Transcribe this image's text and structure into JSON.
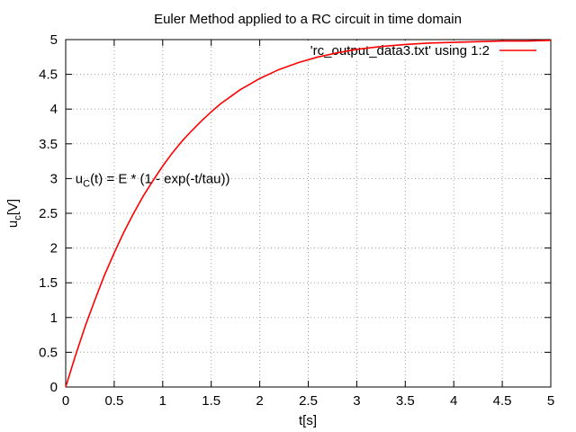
{
  "chart_data": {
    "type": "line",
    "title": "Euler Method applied to a RC circuit in time domain",
    "xlabel": "t[s]",
    "ylabel": {
      "main": "u",
      "sub": "c",
      "suffix": "[V]"
    },
    "xlim": [
      0,
      5
    ],
    "ylim": [
      0,
      5
    ],
    "grid": true,
    "legend_position": "top-right",
    "x_ticks": [
      "0",
      "0.5",
      "1",
      "1.5",
      "2",
      "2.5",
      "3",
      "3.5",
      "4",
      "4.5",
      "5"
    ],
    "y_ticks": [
      "0",
      "0.5",
      "1",
      "1.5",
      "2",
      "2.5",
      "3",
      "3.5",
      "4",
      "4.5",
      "5"
    ],
    "annotation": {
      "prefix": "u",
      "sub": "C",
      "suffix": "(t) = E * (1 - exp(-t/tau))",
      "x": 0.1,
      "y": 3.0
    },
    "series": [
      {
        "name": "'rc_output_data3.txt' using 1:2",
        "color": "#ff0000",
        "x": [
          0,
          0.1,
          0.2,
          0.3,
          0.4,
          0.5,
          0.6,
          0.7,
          0.8,
          0.9,
          1.0,
          1.1,
          1.2,
          1.3,
          1.4,
          1.5,
          1.6,
          1.7,
          1.8,
          1.9,
          2.0,
          2.2,
          2.4,
          2.6,
          2.8,
          3.0,
          3.25,
          3.5,
          3.75,
          4.0,
          4.25,
          4.5,
          4.75,
          5.0
        ],
        "y": [
          0,
          0.45,
          0.87,
          1.25,
          1.61,
          1.93,
          2.23,
          2.5,
          2.75,
          2.97,
          3.18,
          3.37,
          3.54,
          3.69,
          3.83,
          3.96,
          4.08,
          4.18,
          4.28,
          4.36,
          4.44,
          4.57,
          4.67,
          4.75,
          4.81,
          4.86,
          4.9,
          4.93,
          4.95,
          4.96,
          4.97,
          4.98,
          4.98,
          4.99
        ]
      }
    ]
  }
}
